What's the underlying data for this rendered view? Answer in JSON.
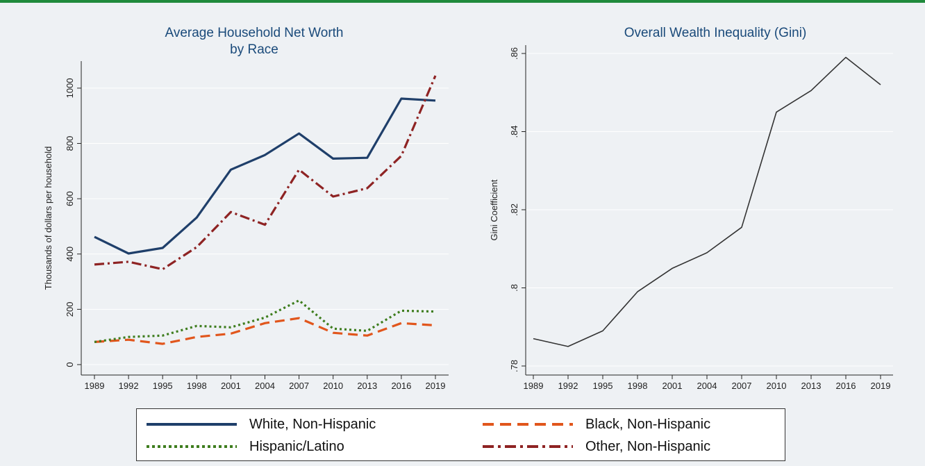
{
  "colors": {
    "white": "#1f3f6a",
    "black": "#e1561c",
    "hispanic": "#3e7d1e",
    "other": "#8e2323",
    "gini": "#333333",
    "title": "#1a4a7a",
    "panel_bg": "#eef1f4",
    "top_rule": "#1f8a3c"
  },
  "chart_data": [
    {
      "type": "line",
      "title": "Average Household Net Worth",
      "subtitle": "by Race",
      "xlabel": "",
      "ylabel": "Thousands of dollars per household",
      "x": [
        "1989",
        "1992",
        "1995",
        "1998",
        "2001",
        "2004",
        "2007",
        "2010",
        "2013",
        "2016",
        "2019"
      ],
      "ylim": [
        0,
        1050
      ],
      "yticks": [
        0,
        200,
        400,
        600,
        800,
        1000
      ],
      "ytick_labels": [
        "0",
        "200",
        "400",
        "600",
        "800",
        "1000"
      ],
      "grid": true,
      "series": [
        {
          "name": "White, Non-Hispanic",
          "style": "solid",
          "color_key": "white",
          "values": [
            462,
            402,
            422,
            532,
            705,
            758,
            836,
            745,
            748,
            962,
            955
          ]
        },
        {
          "name": "Black, Non-Hispanic",
          "style": "dashed",
          "color_key": "black",
          "values": [
            82,
            90,
            75,
            100,
            112,
            150,
            168,
            115,
            105,
            150,
            142
          ]
        },
        {
          "name": "Hispanic/Latino",
          "style": "dotted",
          "color_key": "hispanic",
          "values": [
            82,
            100,
            105,
            140,
            135,
            170,
            232,
            130,
            122,
            195,
            192
          ]
        },
        {
          "name": "Other, Non-Hispanic",
          "style": "dashdot",
          "color_key": "other",
          "values": [
            362,
            372,
            345,
            425,
            552,
            506,
            705,
            608,
            638,
            755,
            1045
          ]
        }
      ]
    },
    {
      "type": "line",
      "title": "Overall Wealth Inequality (Gini)",
      "xlabel": "",
      "ylabel": "Gini Coefficient",
      "x": [
        "1989",
        "1992",
        "1995",
        "1998",
        "2001",
        "2004",
        "2007",
        "2010",
        "2013",
        "2016",
        "2019"
      ],
      "ylim": [
        0.78,
        0.86
      ],
      "yticks": [
        0.78,
        0.8,
        0.82,
        0.84,
        0.86
      ],
      "ytick_labels": [
        ".78",
        ".8",
        ".82",
        ".84",
        ".86"
      ],
      "grid": true,
      "series": [
        {
          "name": "",
          "style": "solid",
          "color_key": "gini",
          "values": [
            0.787,
            0.785,
            0.789,
            0.799,
            0.805,
            0.809,
            0.8155,
            0.845,
            0.8505,
            0.859,
            0.852
          ]
        }
      ]
    }
  ],
  "legend": {
    "items": [
      {
        "label": "White, Non-Hispanic",
        "style": "solid",
        "color_key": "white"
      },
      {
        "label": "Black, Non-Hispanic",
        "style": "dashed",
        "color_key": "black"
      },
      {
        "label": "Hispanic/Latino",
        "style": "dotted",
        "color_key": "hispanic"
      },
      {
        "label": "Other, Non-Hispanic",
        "style": "dashdot",
        "color_key": "other"
      }
    ]
  }
}
